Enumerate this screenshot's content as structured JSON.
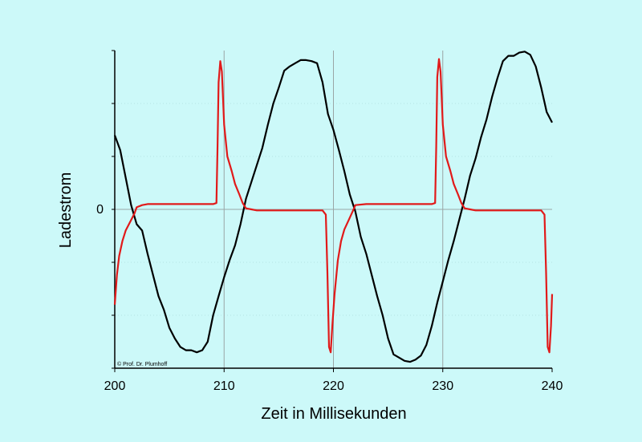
{
  "chart_data": {
    "type": "line",
    "title": "",
    "xlabel": "Zeit in Millisekunden",
    "ylabel": "Ladestrom",
    "xlim": [
      200,
      240
    ],
    "ylim": [
      -1.5,
      1.5
    ],
    "x_ticks": [
      200,
      210,
      220,
      230,
      240
    ],
    "x_tick_labels": [
      "200",
      "210",
      "220",
      "230",
      "240"
    ],
    "y_ticks": [
      0
    ],
    "y_tick_labels": [
      "0"
    ],
    "grid": true,
    "copyright": "© Prof. Dr. Plumhoff",
    "colors": {
      "background": "#ccf9f9",
      "grid_major": "#9aa6a6",
      "grid_minor": "#b5e3e3"
    },
    "series": [
      {
        "color": "#000000",
        "points": [
          [
            200,
            0.7
          ],
          [
            200.5,
            0.56
          ],
          [
            201,
            0.3
          ],
          [
            201.5,
            0.04
          ],
          [
            202,
            -0.14
          ],
          [
            202.5,
            -0.2
          ],
          [
            203,
            -0.42
          ],
          [
            203.5,
            -0.62
          ],
          [
            204,
            -0.82
          ],
          [
            204.5,
            -0.95
          ],
          [
            205,
            -1.12
          ],
          [
            205.5,
            -1.22
          ],
          [
            206,
            -1.3
          ],
          [
            206.5,
            -1.33
          ],
          [
            207,
            -1.33
          ],
          [
            207.5,
            -1.35
          ],
          [
            208,
            -1.33
          ],
          [
            208.5,
            -1.25
          ],
          [
            209,
            -1.0
          ],
          [
            209.5,
            -0.82
          ],
          [
            210,
            -0.64
          ],
          [
            210.5,
            -0.48
          ],
          [
            211,
            -0.34
          ],
          [
            211.5,
            -0.14
          ],
          [
            212,
            0.1
          ],
          [
            212.5,
            0.26
          ],
          [
            213,
            0.42
          ],
          [
            213.5,
            0.58
          ],
          [
            214,
            0.8
          ],
          [
            214.5,
            1.0
          ],
          [
            215,
            1.15
          ],
          [
            215.5,
            1.31
          ],
          [
            216,
            1.35
          ],
          [
            216.5,
            1.38
          ],
          [
            217,
            1.41
          ],
          [
            217.5,
            1.41
          ],
          [
            218,
            1.4
          ],
          [
            218.5,
            1.38
          ],
          [
            219,
            1.2
          ],
          [
            219.5,
            0.9
          ],
          [
            220,
            0.75
          ],
          [
            220.5,
            0.56
          ],
          [
            221,
            0.36
          ],
          [
            221.5,
            0.14
          ],
          [
            222,
            -0.02
          ],
          [
            222.5,
            -0.26
          ],
          [
            223,
            -0.42
          ],
          [
            223.5,
            -0.62
          ],
          [
            224,
            -0.82
          ],
          [
            224.5,
            -1.0
          ],
          [
            225,
            -1.22
          ],
          [
            225.5,
            -1.37
          ],
          [
            226,
            -1.4
          ],
          [
            226.5,
            -1.43
          ],
          [
            227,
            -1.44
          ],
          [
            227.5,
            -1.42
          ],
          [
            228,
            -1.38
          ],
          [
            228.5,
            -1.28
          ],
          [
            229,
            -1.1
          ],
          [
            229.5,
            -0.88
          ],
          [
            230,
            -0.68
          ],
          [
            230.5,
            -0.48
          ],
          [
            231,
            -0.3
          ],
          [
            231.5,
            -0.1
          ],
          [
            232,
            0.1
          ],
          [
            232.5,
            0.32
          ],
          [
            233,
            0.48
          ],
          [
            233.5,
            0.68
          ],
          [
            234,
            0.85
          ],
          [
            234.5,
            1.06
          ],
          [
            235,
            1.24
          ],
          [
            235.5,
            1.4
          ],
          [
            236,
            1.45
          ],
          [
            236.5,
            1.45
          ],
          [
            237,
            1.48
          ],
          [
            237.5,
            1.49
          ],
          [
            238,
            1.46
          ],
          [
            238.5,
            1.35
          ],
          [
            239,
            1.15
          ],
          [
            239.5,
            0.92
          ],
          [
            240,
            0.82
          ]
        ]
      },
      {
        "color": "#e11a1a",
        "points": [
          [
            200,
            -0.9
          ],
          [
            200.2,
            -0.62
          ],
          [
            200.4,
            -0.44
          ],
          [
            200.7,
            -0.3
          ],
          [
            201,
            -0.2
          ],
          [
            201.4,
            -0.12
          ],
          [
            201.8,
            -0.04
          ],
          [
            202,
            0.02
          ],
          [
            202.5,
            0.04
          ],
          [
            203,
            0.05
          ],
          [
            204,
            0.05
          ],
          [
            205,
            0.05
          ],
          [
            206,
            0.05
          ],
          [
            207,
            0.05
          ],
          [
            208,
            0.05
          ],
          [
            209,
            0.05
          ],
          [
            209.3,
            0.06
          ],
          [
            209.4,
            0.6
          ],
          [
            209.5,
            1.2
          ],
          [
            209.65,
            1.4
          ],
          [
            209.8,
            1.3
          ],
          [
            210,
            0.8
          ],
          [
            210.3,
            0.5
          ],
          [
            210.7,
            0.36
          ],
          [
            211,
            0.24
          ],
          [
            211.4,
            0.14
          ],
          [
            211.7,
            0.06
          ],
          [
            212,
            0.01
          ],
          [
            212.5,
            0.0
          ],
          [
            213,
            -0.01
          ],
          [
            214,
            -0.01
          ],
          [
            215,
            -0.01
          ],
          [
            216,
            -0.01
          ],
          [
            217,
            -0.01
          ],
          [
            218,
            -0.01
          ],
          [
            219,
            -0.01
          ],
          [
            219.3,
            -0.05
          ],
          [
            219.45,
            -0.6
          ],
          [
            219.6,
            -1.3
          ],
          [
            219.75,
            -1.35
          ],
          [
            219.9,
            -1.1
          ],
          [
            220.1,
            -0.8
          ],
          [
            220.4,
            -0.48
          ],
          [
            220.7,
            -0.3
          ],
          [
            221,
            -0.19
          ],
          [
            221.4,
            -0.1
          ],
          [
            221.8,
            -0.01
          ],
          [
            222,
            0.04
          ],
          [
            223,
            0.05
          ],
          [
            224,
            0.05
          ],
          [
            225,
            0.05
          ],
          [
            226,
            0.05
          ],
          [
            227,
            0.05
          ],
          [
            228,
            0.05
          ],
          [
            229,
            0.05
          ],
          [
            229.3,
            0.06
          ],
          [
            229.4,
            0.6
          ],
          [
            229.5,
            1.25
          ],
          [
            229.65,
            1.42
          ],
          [
            229.8,
            1.3
          ],
          [
            230,
            0.8
          ],
          [
            230.3,
            0.5
          ],
          [
            230.7,
            0.36
          ],
          [
            231,
            0.24
          ],
          [
            231.4,
            0.14
          ],
          [
            231.7,
            0.06
          ],
          [
            232,
            0.01
          ],
          [
            232.5,
            0.0
          ],
          [
            233,
            -0.01
          ],
          [
            234,
            -0.01
          ],
          [
            235,
            -0.01
          ],
          [
            236,
            -0.01
          ],
          [
            237,
            -0.01
          ],
          [
            238,
            -0.01
          ],
          [
            239,
            -0.01
          ],
          [
            239.3,
            -0.05
          ],
          [
            239.45,
            -0.6
          ],
          [
            239.6,
            -1.3
          ],
          [
            239.75,
            -1.35
          ],
          [
            239.9,
            -1.1
          ],
          [
            240,
            -0.8
          ]
        ]
      }
    ]
  }
}
